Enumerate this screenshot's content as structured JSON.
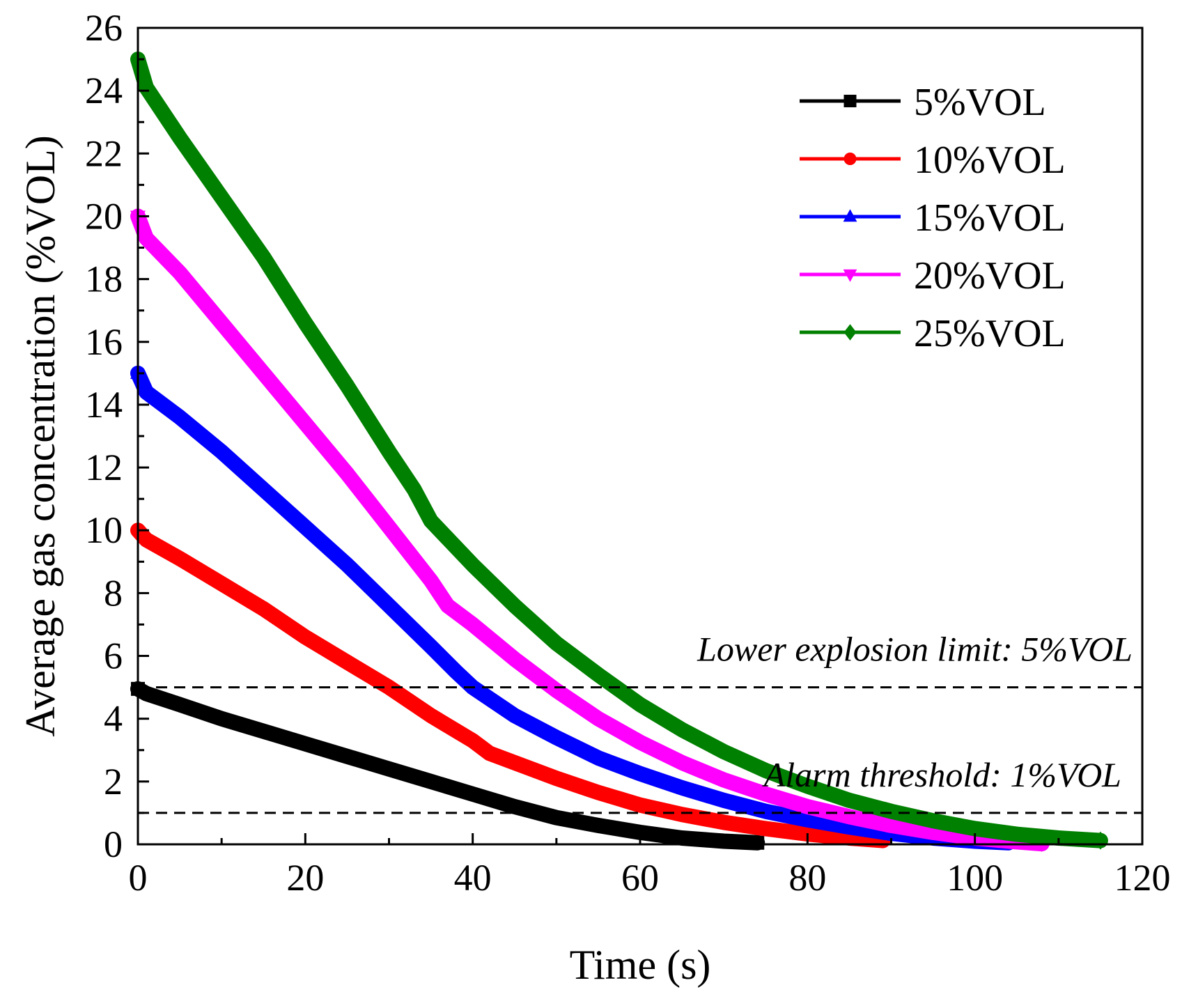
{
  "chart_data": {
    "type": "line",
    "title": "",
    "xlabel": "Time (s)",
    "ylabel": "Average gas concentration (%VOL)",
    "xlim": [
      0,
      120
    ],
    "ylim": [
      0,
      26
    ],
    "x_ticks": [
      "0",
      "20",
      "40",
      "60",
      "80",
      "100",
      "120"
    ],
    "y_ticks": [
      "0",
      "2",
      "4",
      "6",
      "8",
      "10",
      "12",
      "14",
      "16",
      "18",
      "20",
      "22",
      "24",
      "26"
    ],
    "grid": false,
    "legend_position": "top-right",
    "series": [
      {
        "name": "5%VOL",
        "color": "#000000",
        "marker": "square",
        "x": [
          0,
          1,
          5,
          10,
          15,
          20,
          25,
          30,
          35,
          40,
          45,
          50,
          55,
          60,
          65,
          70,
          74
        ],
        "y": [
          4.95,
          4.8,
          4.45,
          4.0,
          3.6,
          3.2,
          2.8,
          2.4,
          2.0,
          1.6,
          1.2,
          0.85,
          0.6,
          0.38,
          0.2,
          0.1,
          0.05
        ]
      },
      {
        "name": "10%VOL",
        "color": "#ff0000",
        "marker": "circle",
        "x": [
          0,
          1,
          5,
          10,
          15,
          20,
          25,
          30,
          35,
          40,
          42,
          45,
          50,
          55,
          60,
          65,
          70,
          75,
          80,
          85,
          89
        ],
        "y": [
          10.0,
          9.7,
          9.1,
          8.3,
          7.5,
          6.6,
          5.8,
          5.0,
          4.1,
          3.3,
          2.9,
          2.6,
          2.1,
          1.65,
          1.25,
          0.95,
          0.7,
          0.5,
          0.33,
          0.2,
          0.12
        ]
      },
      {
        "name": "15%VOL",
        "color": "#0000ff",
        "marker": "triangle-up",
        "x": [
          0,
          1,
          5,
          10,
          15,
          20,
          25,
          30,
          35,
          38,
          40,
          45,
          50,
          55,
          60,
          65,
          70,
          75,
          80,
          85,
          90,
          95,
          100,
          104
        ],
        "y": [
          15.0,
          14.4,
          13.6,
          12.5,
          11.3,
          10.1,
          8.9,
          7.6,
          6.3,
          5.5,
          5.0,
          4.1,
          3.4,
          2.75,
          2.25,
          1.8,
          1.4,
          1.05,
          0.78,
          0.55,
          0.35,
          0.2,
          0.1,
          0.05
        ]
      },
      {
        "name": "20%VOL",
        "color": "#ff00ff",
        "marker": "triangle-down",
        "x": [
          0,
          1,
          5,
          10,
          15,
          20,
          25,
          30,
          35,
          37,
          40,
          45,
          50,
          55,
          60,
          65,
          70,
          75,
          80,
          85,
          90,
          95,
          100,
          105,
          108
        ],
        "y": [
          20.0,
          19.3,
          18.2,
          16.6,
          15.0,
          13.4,
          11.8,
          10.1,
          8.4,
          7.6,
          7.0,
          5.9,
          4.9,
          4.0,
          3.25,
          2.6,
          2.05,
          1.6,
          1.2,
          0.88,
          0.6,
          0.38,
          0.2,
          0.08,
          0.02
        ]
      },
      {
        "name": "25%VOL",
        "color": "#008000",
        "marker": "diamond",
        "x": [
          0,
          1,
          5,
          10,
          15,
          20,
          25,
          30,
          33,
          35,
          40,
          45,
          50,
          55,
          60,
          65,
          70,
          75,
          80,
          85,
          90,
          95,
          100,
          105,
          110,
          115
        ],
        "y": [
          25.0,
          24.1,
          22.5,
          20.6,
          18.7,
          16.6,
          14.6,
          12.5,
          11.3,
          10.3,
          8.9,
          7.6,
          6.4,
          5.4,
          4.45,
          3.65,
          2.95,
          2.35,
          1.85,
          1.4,
          1.05,
          0.75,
          0.5,
          0.32,
          0.2,
          0.12
        ]
      }
    ],
    "reference_lines": [
      {
        "y": 5,
        "label": "Lower explosion limit: 5%VOL",
        "style": "dashed"
      },
      {
        "y": 1,
        "label": "Alarm threshold: 1%VOL",
        "style": "dashed"
      }
    ]
  }
}
